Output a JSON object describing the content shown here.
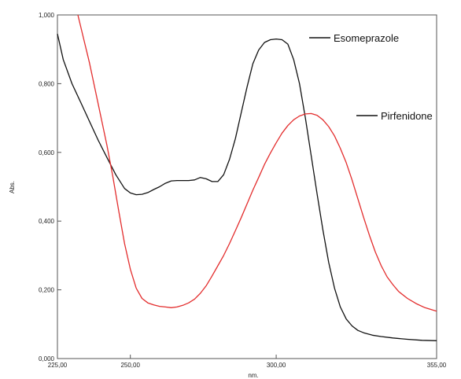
{
  "chart_data": {
    "type": "line",
    "title": "",
    "xlabel": "nm.",
    "ylabel": "Abs.",
    "xlim": [
      225,
      355
    ],
    "ylim": [
      0,
      1
    ],
    "grid": false,
    "legend_placement": "inline-labels",
    "x_ticks": [
      {
        "value": 225,
        "label": "225,00"
      },
      {
        "value": 250,
        "label": "250,00"
      },
      {
        "value": 300,
        "label": "300,00"
      },
      {
        "value": 355,
        "label": "355,00"
      }
    ],
    "y_ticks": [
      {
        "value": 0.0,
        "label": "0,000"
      },
      {
        "value": 0.2,
        "label": "0,200"
      },
      {
        "value": 0.4,
        "label": "0,400"
      },
      {
        "value": 0.6,
        "label": "0,600"
      },
      {
        "value": 0.8,
        "label": "0,800"
      },
      {
        "value": 1.0,
        "label": "1,000"
      }
    ],
    "series": [
      {
        "name": "Esomeprazole",
        "color": "#111111",
        "points": [
          [
            225,
            0.945
          ],
          [
            227,
            0.87
          ],
          [
            230,
            0.8
          ],
          [
            233,
            0.745
          ],
          [
            236,
            0.69
          ],
          [
            239,
            0.635
          ],
          [
            242,
            0.585
          ],
          [
            245,
            0.535
          ],
          [
            248,
            0.495
          ],
          [
            250,
            0.482
          ],
          [
            252,
            0.477
          ],
          [
            254,
            0.478
          ],
          [
            256,
            0.483
          ],
          [
            258,
            0.492
          ],
          [
            260,
            0.5
          ],
          [
            262,
            0.51
          ],
          [
            264,
            0.517
          ],
          [
            266,
            0.518
          ],
          [
            268,
            0.518
          ],
          [
            270,
            0.518
          ],
          [
            272,
            0.52
          ],
          [
            274,
            0.527
          ],
          [
            276,
            0.523
          ],
          [
            278,
            0.515
          ],
          [
            280,
            0.515
          ],
          [
            282,
            0.535
          ],
          [
            284,
            0.58
          ],
          [
            286,
            0.64
          ],
          [
            288,
            0.715
          ],
          [
            290,
            0.79
          ],
          [
            292,
            0.858
          ],
          [
            294,
            0.898
          ],
          [
            296,
            0.92
          ],
          [
            298,
            0.928
          ],
          [
            300,
            0.93
          ],
          [
            302,
            0.928
          ],
          [
            304,
            0.915
          ],
          [
            306,
            0.87
          ],
          [
            308,
            0.8
          ],
          [
            310,
            0.7
          ],
          [
            312,
            0.59
          ],
          [
            314,
            0.48
          ],
          [
            316,
            0.375
          ],
          [
            318,
            0.28
          ],
          [
            320,
            0.205
          ],
          [
            322,
            0.15
          ],
          [
            324,
            0.115
          ],
          [
            326,
            0.095
          ],
          [
            328,
            0.082
          ],
          [
            330,
            0.075
          ],
          [
            333,
            0.068
          ],
          [
            336,
            0.064
          ],
          [
            340,
            0.06
          ],
          [
            345,
            0.056
          ],
          [
            350,
            0.053
          ],
          [
            355,
            0.052
          ]
        ]
      },
      {
        "name": "Pirfenidone",
        "color": "#e32d2d",
        "points": [
          [
            232,
            1.0
          ],
          [
            234,
            0.93
          ],
          [
            236,
            0.86
          ],
          [
            238,
            0.78
          ],
          [
            240,
            0.7
          ],
          [
            242,
            0.62
          ],
          [
            244,
            0.53
          ],
          [
            246,
            0.43
          ],
          [
            248,
            0.335
          ],
          [
            250,
            0.26
          ],
          [
            252,
            0.205
          ],
          [
            254,
            0.175
          ],
          [
            256,
            0.162
          ],
          [
            258,
            0.156
          ],
          [
            260,
            0.152
          ],
          [
            262,
            0.15
          ],
          [
            264,
            0.148
          ],
          [
            266,
            0.15
          ],
          [
            268,
            0.155
          ],
          [
            270,
            0.162
          ],
          [
            272,
            0.173
          ],
          [
            274,
            0.19
          ],
          [
            276,
            0.212
          ],
          [
            278,
            0.24
          ],
          [
            280,
            0.27
          ],
          [
            282,
            0.3
          ],
          [
            284,
            0.335
          ],
          [
            286,
            0.372
          ],
          [
            288,
            0.41
          ],
          [
            290,
            0.45
          ],
          [
            292,
            0.49
          ],
          [
            294,
            0.527
          ],
          [
            296,
            0.565
          ],
          [
            298,
            0.598
          ],
          [
            300,
            0.628
          ],
          [
            302,
            0.656
          ],
          [
            304,
            0.678
          ],
          [
            306,
            0.695
          ],
          [
            308,
            0.706
          ],
          [
            310,
            0.712
          ],
          [
            312,
            0.713
          ],
          [
            314,
            0.708
          ],
          [
            316,
            0.695
          ],
          [
            318,
            0.675
          ],
          [
            320,
            0.648
          ],
          [
            322,
            0.612
          ],
          [
            324,
            0.57
          ],
          [
            326,
            0.52
          ],
          [
            328,
            0.465
          ],
          [
            330,
            0.41
          ],
          [
            332,
            0.358
          ],
          [
            334,
            0.31
          ],
          [
            336,
            0.27
          ],
          [
            338,
            0.238
          ],
          [
            340,
            0.215
          ],
          [
            342,
            0.195
          ],
          [
            345,
            0.175
          ],
          [
            348,
            0.16
          ],
          [
            351,
            0.148
          ],
          [
            355,
            0.138
          ]
        ]
      }
    ],
    "annotations": [
      {
        "text": "Esomeprazole",
        "series": "Esomeprazole"
      },
      {
        "text": "Pirfenidone",
        "series": "Pirfenidone"
      }
    ]
  }
}
